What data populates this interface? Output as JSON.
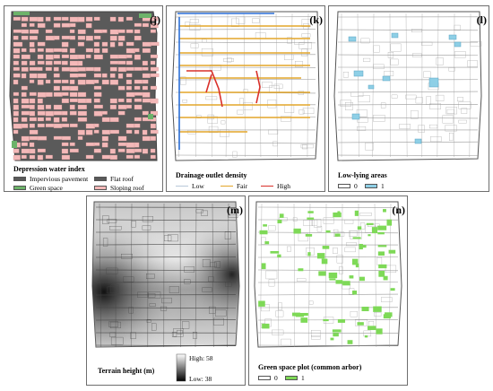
{
  "panels": {
    "j": {
      "label": "(j)",
      "legend_title": "Depression water index",
      "items": [
        {
          "label": "Impervious pavement",
          "color": "#5a5a5a"
        },
        {
          "label": "Flat roof",
          "color": "#5a5a5a"
        },
        {
          "label": "Green space",
          "color": "#6db36a"
        },
        {
          "label": "Sloping roof",
          "color": "#f4b9b9"
        }
      ]
    },
    "k": {
      "label": "(k)",
      "legend_title": "Drainage outlet density",
      "items": [
        {
          "label": "Low",
          "color": "#b8c9d9"
        },
        {
          "label": "Fair",
          "color": "#e3a62a"
        },
        {
          "label": "High",
          "color": "#d9302a"
        }
      ]
    },
    "l": {
      "label": "(l)",
      "legend_title": "Low-lying areas",
      "items": [
        {
          "label": "0",
          "color": "#ffffff"
        },
        {
          "label": "1",
          "color": "#8ecfe6"
        }
      ]
    },
    "m": {
      "label": "(m)",
      "legend_title": "Terrain height (m)",
      "high_label": "High: 58",
      "low_label": "Low: 38"
    },
    "n": {
      "label": "(n)",
      "legend_title": "Green space plot (common arbor)",
      "items": [
        {
          "label": "0",
          "color": "#ffffff"
        },
        {
          "label": "1",
          "color": "#7ed957"
        }
      ]
    }
  }
}
